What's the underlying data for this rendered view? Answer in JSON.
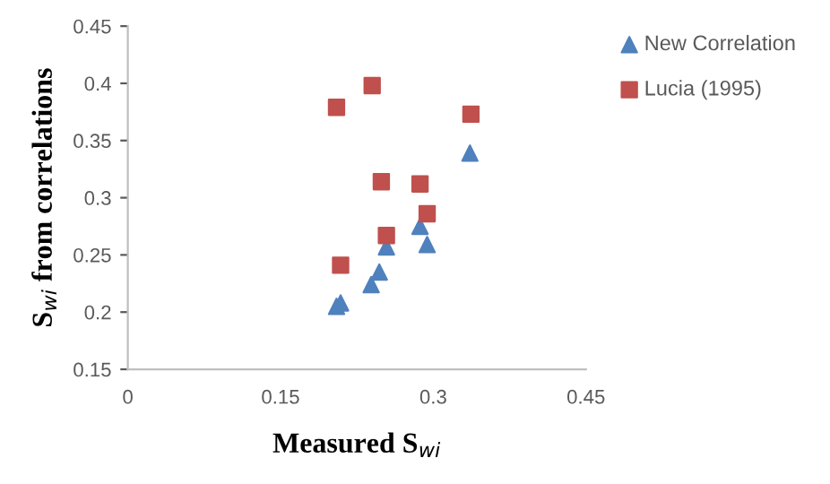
{
  "chart_data": {
    "type": "scatter",
    "xlabel": "Measured S$_{wi}$",
    "ylabel": "S$_{wi}$ from correlations",
    "xlim": [
      0,
      0.45
    ],
    "xticks": [
      0,
      0.15,
      0.3,
      0.45
    ],
    "ylim": [
      0.15,
      0.45
    ],
    "yticks": [
      0.15,
      0.2,
      0.25,
      0.3,
      0.35,
      0.4,
      0.45
    ],
    "grid": false,
    "legend": "top right",
    "series": [
      {
        "name": "New Correlation",
        "color": "#4f81bd",
        "marker": "triangle",
        "x": [
          0.205,
          0.209,
          0.239,
          0.247,
          0.254,
          0.287,
          0.294,
          0.336
        ],
        "values": [
          0.205,
          0.208,
          0.224,
          0.235,
          0.257,
          0.275,
          0.259,
          0.339
        ]
      },
      {
        "name": "Lucia (1995)",
        "color": "#c0504d",
        "marker": "square",
        "x": [
          0.205,
          0.24,
          0.337,
          0.249,
          0.287,
          0.294,
          0.254,
          0.209
        ],
        "values": [
          0.379,
          0.398,
          0.373,
          0.314,
          0.312,
          0.286,
          0.267,
          0.241
        ]
      }
    ]
  }
}
